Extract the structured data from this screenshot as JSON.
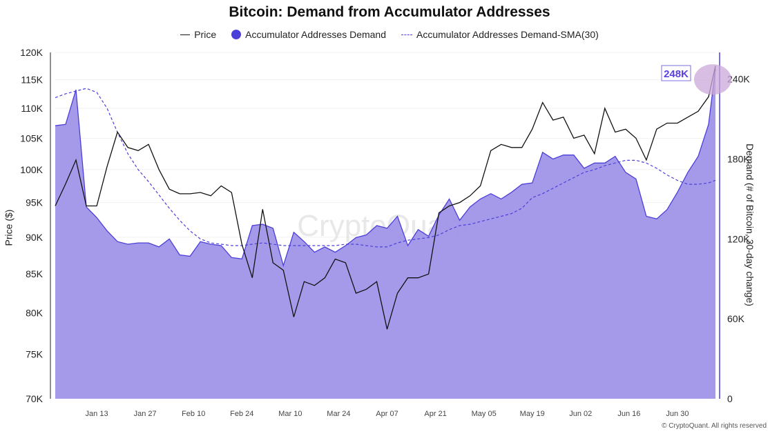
{
  "chart_data": {
    "type": "line",
    "title": "Bitcoin: Demand from Accumulator Addresses",
    "legend": [
      "Price",
      "Accumulator Addresses Demand",
      "Accumulator Addresses Demand-SMA(30)"
    ],
    "legend_placement": "top",
    "ylabel_left": "Price ($)",
    "ylabel_right": "Demand (# of Bitcoin, 30-day change)",
    "left_axis": {
      "scale": "log",
      "range": [
        70000,
        120000
      ],
      "ticks": [
        "70K",
        "75K",
        "80K",
        "85K",
        "90K",
        "95K",
        "100K",
        "105K",
        "110K",
        "115K",
        "120K"
      ],
      "tick_values": [
        70000,
        75000,
        80000,
        85000,
        90000,
        95000,
        100000,
        105000,
        110000,
        115000,
        120000
      ]
    },
    "right_axis": {
      "scale": "linear",
      "range": [
        0,
        260000
      ],
      "ticks": [
        "0",
        "60K",
        "120K",
        "180K",
        "240K"
      ],
      "tick_values": [
        0,
        60000,
        120000,
        180000,
        240000
      ]
    },
    "x_axis": {
      "range": [
        "2025-01-01",
        "2025-07-11"
      ],
      "ticks": [
        "Jan 13",
        "Jan 27",
        "Feb 10",
        "Feb 24",
        "Mar 10",
        "Mar 24",
        "Apr 07",
        "Apr 21",
        "May 05",
        "May 19",
        "Jun 02",
        "Jun 16",
        "Jun 30"
      ],
      "tick_dates": [
        "2025-01-13",
        "2025-01-27",
        "2025-02-10",
        "2025-02-24",
        "2025-03-10",
        "2025-03-24",
        "2025-04-07",
        "2025-04-21",
        "2025-05-05",
        "2025-05-19",
        "2025-06-02",
        "2025-06-16",
        "2025-06-30"
      ]
    },
    "grid": true,
    "dates": [
      "2025-01-01",
      "2025-01-04",
      "2025-01-07",
      "2025-01-10",
      "2025-01-13",
      "2025-01-16",
      "2025-01-19",
      "2025-01-22",
      "2025-01-25",
      "2025-01-28",
      "2025-01-31",
      "2025-02-03",
      "2025-02-06",
      "2025-02-09",
      "2025-02-12",
      "2025-02-15",
      "2025-02-18",
      "2025-02-21",
      "2025-02-24",
      "2025-02-27",
      "2025-03-02",
      "2025-03-05",
      "2025-03-08",
      "2025-03-11",
      "2025-03-14",
      "2025-03-17",
      "2025-03-20",
      "2025-03-23",
      "2025-03-26",
      "2025-03-29",
      "2025-04-01",
      "2025-04-04",
      "2025-04-07",
      "2025-04-10",
      "2025-04-13",
      "2025-04-16",
      "2025-04-19",
      "2025-04-22",
      "2025-04-25",
      "2025-04-28",
      "2025-05-01",
      "2025-05-04",
      "2025-05-07",
      "2025-05-10",
      "2025-05-13",
      "2025-05-16",
      "2025-05-19",
      "2025-05-22",
      "2025-05-25",
      "2025-05-28",
      "2025-05-31",
      "2025-06-03",
      "2025-06-06",
      "2025-06-09",
      "2025-06-12",
      "2025-06-15",
      "2025-06-18",
      "2025-06-21",
      "2025-06-24",
      "2025-06-27",
      "2025-06-30",
      "2025-07-03",
      "2025-07-06",
      "2025-07-09",
      "2025-07-11"
    ],
    "series": [
      {
        "name": "Price",
        "axis": "left",
        "color": "#111111",
        "style": "solid",
        "values": [
          94500,
          97800,
          101500,
          94500,
          94500,
          100500,
          106000,
          103500,
          103000,
          104000,
          100000,
          97000,
          96300,
          96300,
          96500,
          96000,
          97500,
          96500,
          89000,
          84500,
          94000,
          86500,
          85500,
          79500,
          84000,
          83500,
          84500,
          87000,
          86500,
          82500,
          83000,
          84000,
          78000,
          82500,
          84500,
          84500,
          85000,
          93500,
          94500,
          95000,
          96000,
          97500,
          103000,
          104000,
          103500,
          103500,
          106500,
          111000,
          108000,
          108500,
          105000,
          105500,
          102500,
          110000,
          106000,
          106500,
          105000,
          101500,
          106500,
          107500,
          107500,
          108500,
          109500,
          112000,
          117500
        ]
      },
      {
        "name": "Accumulator Addresses Demand",
        "axis": "right",
        "color": "#4b3fd9",
        "fill": "#9f95e8",
        "style": "area",
        "values": [
          205000,
          206000,
          232000,
          144000,
          136000,
          126000,
          118000,
          116000,
          117000,
          117000,
          114000,
          120000,
          108000,
          107000,
          118000,
          116000,
          115000,
          106000,
          105000,
          130000,
          131000,
          128000,
          100000,
          125000,
          118000,
          110000,
          114000,
          110000,
          115000,
          121000,
          123000,
          130000,
          128000,
          137000,
          115000,
          127000,
          122000,
          138000,
          150000,
          134000,
          144000,
          150000,
          154000,
          150000,
          155000,
          161000,
          162000,
          185000,
          180000,
          183000,
          183000,
          173000,
          177000,
          177000,
          182000,
          170000,
          165000,
          137000,
          135000,
          142000,
          155000,
          170000,
          182000,
          206000,
          248000
        ]
      },
      {
        "name": "Accumulator Addresses Demand-SMA(30)",
        "axis": "right",
        "color": "#4b3fd9",
        "style": "dashed",
        "values": [
          226000,
          229000,
          231000,
          233000,
          230000,
          218000,
          200000,
          184000,
          172000,
          163000,
          153000,
          143000,
          134000,
          126000,
          120000,
          117000,
          116000,
          115000,
          115000,
          116000,
          117000,
          116000,
          115000,
          115000,
          115000,
          115000,
          115000,
          115000,
          116000,
          116000,
          115000,
          114000,
          114000,
          117000,
          119000,
          120000,
          121000,
          123000,
          127000,
          130000,
          131000,
          133000,
          135000,
          137000,
          139000,
          143000,
          151000,
          154000,
          158000,
          162000,
          166000,
          170000,
          172000,
          175000,
          177000,
          179000,
          179000,
          177000,
          173000,
          168000,
          164000,
          161000,
          161000,
          162000,
          164000
        ]
      }
    ],
    "annotations": [
      {
        "text": "248K",
        "color": "#5b3fe0",
        "highlight_color": "#c9a8d8"
      }
    ]
  },
  "watermark": "CryptoQuant",
  "copyright": "© CryptoQuant. All rights reserved"
}
